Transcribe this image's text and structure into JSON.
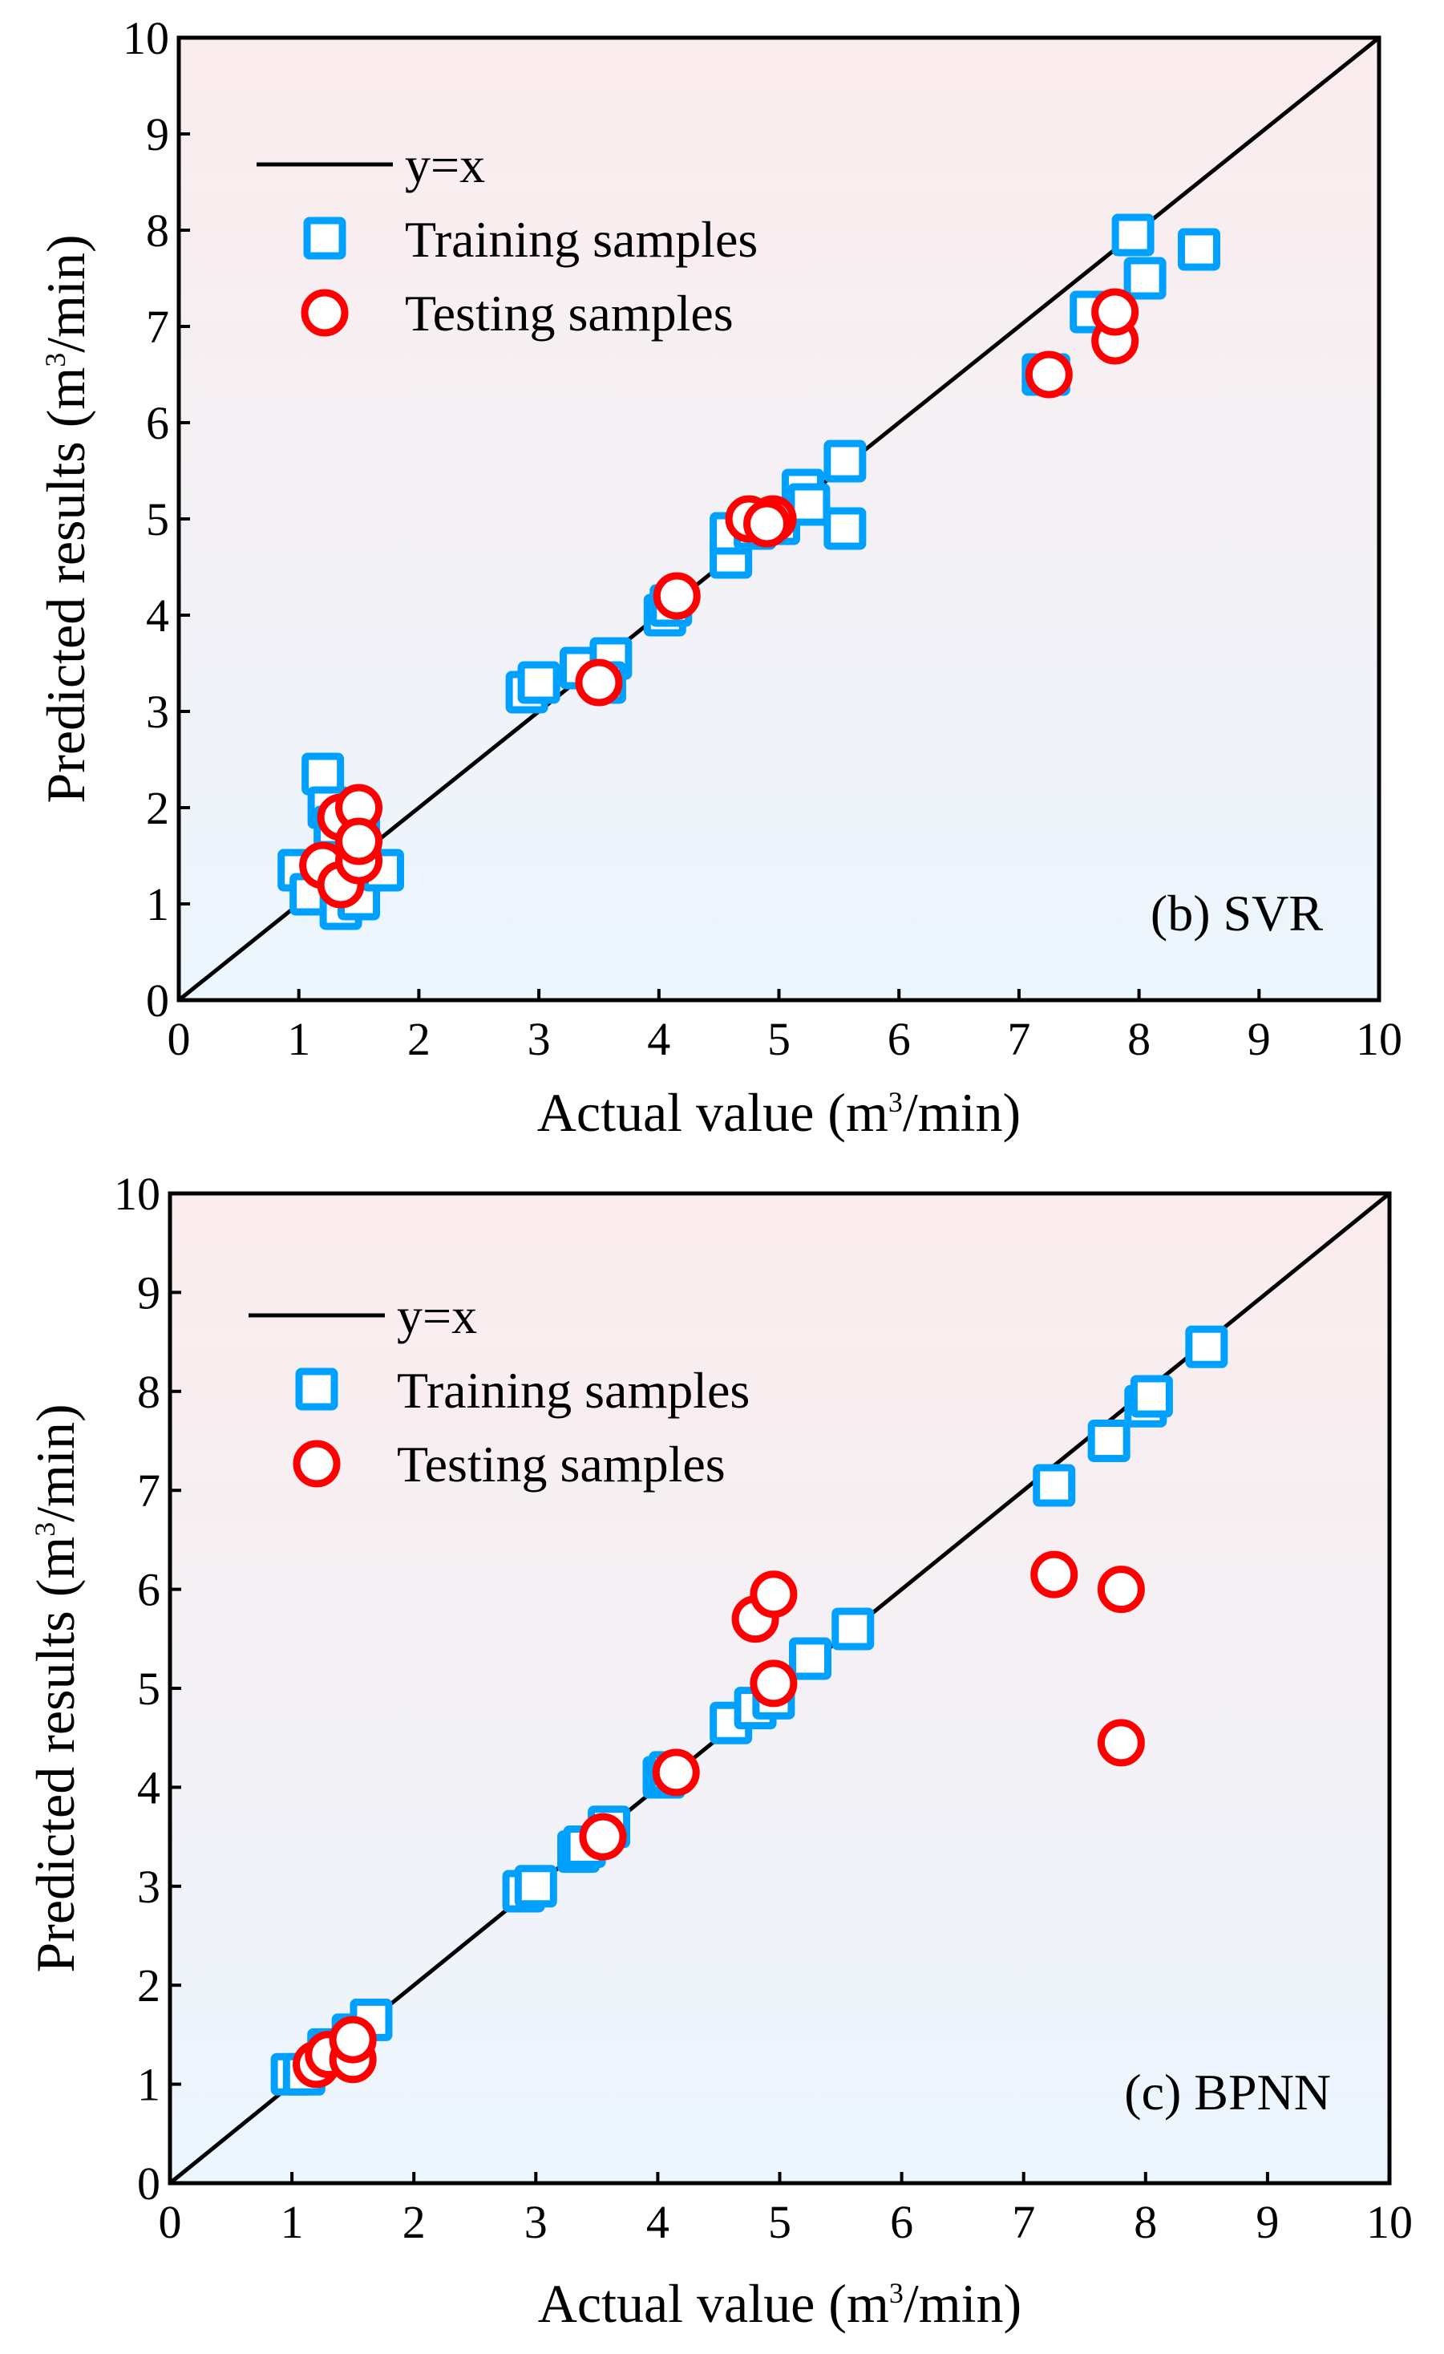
{
  "chart_data": [
    {
      "type": "scatter",
      "title": "(b) SVR",
      "xlabel": "Actual value (m3/min)",
      "xlabel_parts": {
        "pre": "Actual value (m",
        "sup": "3",
        "post": "/min)"
      },
      "ylabel_parts": {
        "pre": "Predicted results (m",
        "sup": "3",
        "post": "/min)"
      },
      "xlim": [
        0,
        10
      ],
      "ylim": [
        0,
        10
      ],
      "xticks": [
        "0",
        "1",
        "2",
        "3",
        "4",
        "5",
        "6",
        "7",
        "8",
        "9",
        "10"
      ],
      "yticks": [
        "0",
        "1",
        "2",
        "3",
        "4",
        "5",
        "6",
        "7",
        "8",
        "9",
        "10"
      ],
      "legend": {
        "placement": "top-left",
        "line": "y=x",
        "train": "Training samples",
        "test": "Testing samples"
      },
      "series": [
        {
          "name": "Training samples",
          "marker": "square",
          "color": "#00a0ff",
          "points": [
            [
              1.0,
              1.35
            ],
            [
              1.1,
              1.1
            ],
            [
              1.2,
              2.35
            ],
            [
              1.25,
              2.0
            ],
            [
              1.3,
              1.8
            ],
            [
              1.35,
              0.95
            ],
            [
              1.5,
              1.05
            ],
            [
              1.5,
              1.9
            ],
            [
              1.7,
              1.35
            ],
            [
              2.9,
              3.2
            ],
            [
              3.0,
              3.3
            ],
            [
              3.35,
              3.45
            ],
            [
              3.6,
              3.55
            ],
            [
              3.55,
              3.3
            ],
            [
              4.05,
              4.0
            ],
            [
              4.1,
              4.1
            ],
            [
              4.6,
              4.6
            ],
            [
              4.6,
              4.85
            ],
            [
              4.8,
              4.9
            ],
            [
              5.0,
              4.95
            ],
            [
              5.2,
              5.3
            ],
            [
              5.25,
              5.15
            ],
            [
              5.55,
              5.6
            ],
            [
              5.55,
              4.9
            ],
            [
              7.2,
              6.5
            ],
            [
              7.25,
              6.5
            ],
            [
              7.6,
              7.15
            ],
            [
              7.95,
              7.95
            ],
            [
              8.05,
              7.5
            ],
            [
              8.5,
              7.8
            ]
          ]
        },
        {
          "name": "Testing samples",
          "marker": "circle",
          "color": "#ff0000",
          "points": [
            [
              1.2,
              1.4
            ],
            [
              1.35,
              1.2
            ],
            [
              1.35,
              1.9
            ],
            [
              1.5,
              1.45
            ],
            [
              1.5,
              2.0
            ],
            [
              1.5,
              1.65
            ],
            [
              3.5,
              3.3
            ],
            [
              4.15,
              4.2
            ],
            [
              4.75,
              5.0
            ],
            [
              4.95,
              5.0
            ],
            [
              4.9,
              4.95
            ],
            [
              7.25,
              6.5
            ],
            [
              7.8,
              6.85
            ],
            [
              7.8,
              7.15
            ]
          ]
        }
      ]
    },
    {
      "type": "scatter",
      "title": "(c) BPNN",
      "xlabel": "Actual value (m3/min)",
      "xlabel_parts": {
        "pre": "Actual value (m",
        "sup": "3",
        "post": "/min)"
      },
      "ylabel_parts": {
        "pre": "Predicted results (m",
        "sup": "3",
        "post": "/min)"
      },
      "xlim": [
        0,
        10
      ],
      "ylim": [
        0,
        10
      ],
      "xticks": [
        "0",
        "1",
        "2",
        "3",
        "4",
        "5",
        "6",
        "7",
        "8",
        "9",
        "10"
      ],
      "yticks": [
        "0",
        "1",
        "2",
        "3",
        "4",
        "5",
        "6",
        "7",
        "8",
        "9",
        "10"
      ],
      "legend": {
        "placement": "top-left",
        "line": "y=x",
        "train": "Training samples",
        "test": "Testing samples"
      },
      "series": [
        {
          "name": "Training samples",
          "marker": "square",
          "color": "#00a0ff",
          "points": [
            [
              1.0,
              1.1
            ],
            [
              1.1,
              1.1
            ],
            [
              1.3,
              1.35
            ],
            [
              1.5,
              1.5
            ],
            [
              1.65,
              1.65
            ],
            [
              2.9,
              2.95
            ],
            [
              3.0,
              3.0
            ],
            [
              3.35,
              3.35
            ],
            [
              3.4,
              3.4
            ],
            [
              3.6,
              3.6
            ],
            [
              4.05,
              4.1
            ],
            [
              4.1,
              4.15
            ],
            [
              4.6,
              4.65
            ],
            [
              4.8,
              4.8
            ],
            [
              4.95,
              4.9
            ],
            [
              5.25,
              5.3
            ],
            [
              5.6,
              5.6
            ],
            [
              7.25,
              7.05
            ],
            [
              7.7,
              7.5
            ],
            [
              8.0,
              7.85
            ],
            [
              8.05,
              7.95
            ],
            [
              8.5,
              8.45
            ]
          ]
        },
        {
          "name": "Testing samples",
          "marker": "circle",
          "color": "#ff0000",
          "points": [
            [
              1.2,
              1.2
            ],
            [
              1.3,
              1.3
            ],
            [
              1.5,
              1.25
            ],
            [
              1.5,
              1.45
            ],
            [
              3.55,
              3.5
            ],
            [
              4.15,
              4.15
            ],
            [
              4.8,
              5.7
            ],
            [
              4.95,
              5.95
            ],
            [
              4.95,
              5.05
            ],
            [
              7.25,
              6.15
            ],
            [
              7.8,
              6.0
            ],
            [
              7.8,
              4.45
            ]
          ]
        }
      ]
    }
  ]
}
